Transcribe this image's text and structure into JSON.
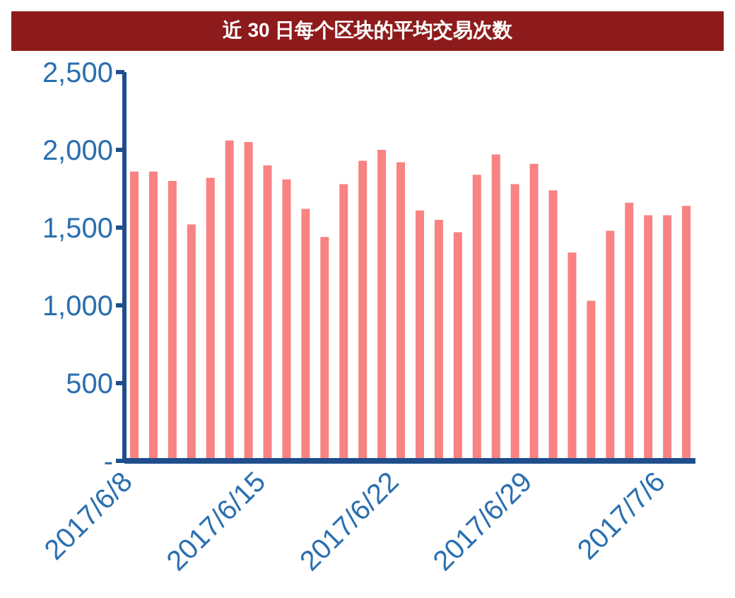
{
  "chart_data": {
    "type": "bar",
    "title": "近 30 日每个区块的平均交易次数",
    "categories": [
      "2017/6/8",
      null,
      null,
      null,
      null,
      null,
      null,
      "2017/6/15",
      null,
      null,
      null,
      null,
      null,
      null,
      "2017/6/22",
      null,
      null,
      null,
      null,
      null,
      null,
      "2017/6/29",
      null,
      null,
      null,
      null,
      null,
      null,
      "2017/7/6",
      null
    ],
    "values": [
      1860,
      1860,
      1800,
      1520,
      1820,
      2060,
      2050,
      1900,
      1810,
      1620,
      1440,
      1780,
      1930,
      2000,
      1920,
      1610,
      1550,
      1470,
      1840,
      1970,
      1780,
      1910,
      1740,
      1340,
      1030,
      1480,
      1660,
      1580,
      1580,
      1640
    ],
    "color": "#f98282",
    "ylim": [
      0,
      2500
    ],
    "yticks": [
      {
        "value": 0,
        "label": "-"
      },
      {
        "value": 500,
        "label": "500"
      },
      {
        "value": 1000,
        "label": "1,000"
      },
      {
        "value": 1500,
        "label": "1,500"
      },
      {
        "value": 2000,
        "label": "2,000"
      },
      {
        "value": 2500,
        "label": "2,500"
      }
    ],
    "grid": false
  }
}
